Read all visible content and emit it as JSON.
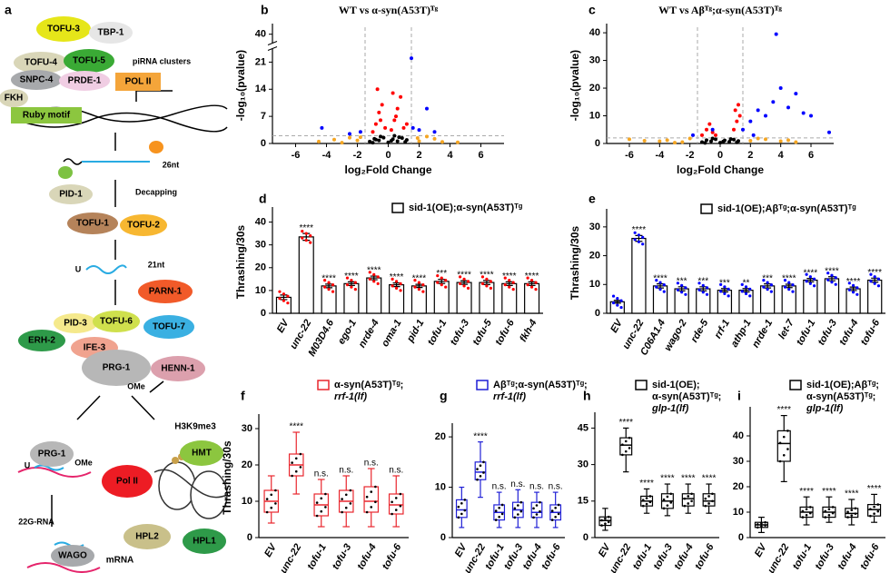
{
  "diagram": {
    "panel_label": "a",
    "nodes": [
      {
        "label": "TOFU-3"
      },
      {
        "label": "TBP-1"
      },
      {
        "label": "TOFU-4"
      },
      {
        "label": "TOFU-5"
      },
      {
        "label": "piRNA clusters"
      },
      {
        "label": "SNPC-4"
      },
      {
        "label": "PRDE-1"
      },
      {
        "label": "POL II"
      },
      {
        "label": "FKH"
      },
      {
        "label": "Ruby motif"
      },
      {
        "label": "26nt"
      },
      {
        "label": "PID-1"
      },
      {
        "label": "Decapping"
      },
      {
        "label": "TOFU-1"
      },
      {
        "label": "TOFU-2"
      },
      {
        "label": "U"
      },
      {
        "label": "21nt"
      },
      {
        "label": "PARN-1"
      },
      {
        "label": "PID-3"
      },
      {
        "label": "TOFU-6"
      },
      {
        "label": "TOFU-7"
      },
      {
        "label": "ERH-2"
      },
      {
        "label": "IFE-3"
      },
      {
        "label": "HENN-1"
      },
      {
        "label": "PRG-1"
      },
      {
        "label": "OMe"
      },
      {
        "label": "PRG-1"
      },
      {
        "label": "U"
      },
      {
        "label": "OMe"
      },
      {
        "label": "H3K9me3"
      },
      {
        "label": "HMT"
      },
      {
        "label": "Pol II"
      },
      {
        "label": "HPL2"
      },
      {
        "label": "HPL1"
      },
      {
        "label": "22G-RNA"
      },
      {
        "label": "WAGO"
      },
      {
        "label": "mRNA"
      }
    ]
  },
  "chart_data": [
    {
      "type": "scatter",
      "panel_label": "b",
      "title": "WT vs α-syn(A53T)ᵀᵍ",
      "xlabel": "log₂Fold Change",
      "ylabel": "-log₁₀(pvalue)",
      "xlim": [
        -7.5,
        7.5
      ],
      "xticks": [
        -6,
        -4,
        -2,
        0,
        2,
        4,
        6
      ],
      "ylim": [
        0,
        42
      ],
      "ybreak": [
        24,
        38
      ],
      "yticks": [
        0,
        7,
        14,
        21,
        40
      ],
      "vlines": [
        -1.5,
        1.5
      ],
      "hline": 2,
      "series": [
        {
          "color": "#f5a623",
          "x": [
            -4.5,
            -3.5,
            -2.5,
            -2,
            2,
            3,
            3.5,
            4.5,
            -3,
            2.5,
            -1.8,
            1.9
          ],
          "values": [
            0.5,
            1,
            1.5,
            0.8,
            0.6,
            1.2,
            0.4,
            0.3,
            0.2,
            1.8,
            1.6,
            1.4
          ]
        },
        {
          "color": "#000000",
          "x": [
            -1.2,
            -0.9,
            -0.6,
            -0.3,
            0,
            0.3,
            0.6,
            0.9,
            1.2,
            -1,
            -0.5,
            0.2,
            0.7,
            1.1,
            -0.8,
            0.4
          ],
          "values": [
            0.5,
            1.2,
            0.8,
            1.5,
            0.3,
            1.1,
            0.6,
            1.4,
            0.9,
            0.2,
            1.8,
            0.7,
            1.6,
            0.4,
            1,
            2
          ]
        },
        {
          "color": "#ff0000",
          "x": [
            -1,
            -0.8,
            -0.6,
            -0.4,
            -0.2,
            0.2,
            0.4,
            0.6,
            0.8,
            1,
            -0.7,
            0.5,
            0.3,
            -0.5,
            1.2
          ],
          "values": [
            3,
            5,
            8,
            10,
            4,
            3.5,
            6,
            9,
            12,
            4,
            14,
            7,
            13,
            6,
            5
          ]
        },
        {
          "color": "#0000ff",
          "x": [
            -2.5,
            -1.8,
            1.6,
            2,
            2.5,
            -4.3,
            3,
            1.5
          ],
          "values": [
            2.5,
            3,
            4,
            3.5,
            9,
            4,
            3,
            22
          ]
        }
      ]
    },
    {
      "type": "scatter",
      "panel_label": "c",
      "title": "WT vs Aβᵀᵍ;α-syn(A53T)ᵀᵍ",
      "xlabel": "log₂Fold Change",
      "ylabel": "-log₁₀(pvalue)",
      "xlim": [
        -7.5,
        7.5
      ],
      "xticks": [
        -6,
        -4,
        -2,
        0,
        2,
        4,
        6
      ],
      "ylim": [
        0,
        42
      ],
      "yticks": [
        0,
        10,
        20,
        30,
        40
      ],
      "vlines": [
        -1.5,
        1.5
      ],
      "hline": 2,
      "series": [
        {
          "color": "#f5a623",
          "x": [
            -6,
            -5,
            -4,
            -3.5,
            -2.5,
            -2,
            2,
            3,
            4,
            4.5,
            5,
            -3,
            2.5
          ],
          "values": [
            1.5,
            1,
            0.8,
            1.2,
            0.5,
            1.8,
            1,
            1.5,
            0.8,
            1.2,
            0.5,
            0.3,
            1.8
          ]
        },
        {
          "color": "#000000",
          "x": [
            -1.2,
            -0.9,
            -0.6,
            -0.3,
            0,
            0.3,
            0.6,
            0.9,
            1.2,
            -1,
            -0.5,
            0.2,
            0.7,
            1.1
          ],
          "values": [
            0.5,
            1.2,
            0.8,
            1.5,
            0.3,
            1.1,
            0.6,
            1.4,
            0.9,
            0.2,
            1.8,
            0.7,
            1.6,
            0.4
          ]
        },
        {
          "color": "#ff0000",
          "x": [
            -1.2,
            -0.9,
            -0.7,
            -0.5,
            -0.3,
            0.9,
            1.1,
            1.3,
            1,
            1.2
          ],
          "values": [
            3,
            5,
            7,
            4,
            3,
            5,
            8,
            10,
            12,
            14
          ]
        },
        {
          "color": "#0000ff",
          "x": [
            1.5,
            2,
            2.5,
            3,
            3.5,
            4,
            4.5,
            5,
            5.5,
            2.2,
            3.7,
            -1.8,
            -0.5,
            6,
            7.2
          ],
          "values": [
            5,
            8,
            12,
            10,
            15,
            20,
            13,
            18,
            11,
            3,
            39.5,
            3,
            5,
            10,
            4
          ]
        }
      ]
    },
    {
      "type": "bar",
      "panel_label": "d",
      "ylabel": "Thrashing/30s",
      "legend": "sid-1(OE);α-syn(A53T)ᵀᵍ",
      "color": "#ff0000",
      "categories": [
        "EV",
        "unc-22",
        "M03D4.6",
        "ego-1",
        "nrde-4",
        "oma-1",
        "pid-1",
        "tofu-1",
        "tofu-3",
        "tofu-5",
        "tofu-6",
        "fkh-4"
      ],
      "values": [
        7,
        33.5,
        12,
        13,
        15.5,
        12.5,
        12,
        14,
        13.5,
        13.5,
        13,
        13
      ],
      "errors": [
        1,
        1.5,
        0.8,
        0.8,
        0.8,
        0.8,
        0.7,
        0.9,
        0.8,
        0.9,
        0.8,
        0.8
      ],
      "annotations": [
        null,
        "****",
        "****",
        "****",
        "****",
        "****",
        "****",
        "***",
        "****",
        "****",
        "****",
        "****"
      ],
      "ylim": [
        0,
        45
      ],
      "yticks": [
        0,
        10,
        20,
        30,
        40
      ]
    },
    {
      "type": "bar",
      "panel_label": "e",
      "ylabel": "Thrashing/30s",
      "legend": "sid-1(OE);Aβᵀᵍ;α-syn(A53T)ᵀᵍ",
      "color": "#0000ff",
      "categories": [
        "EV",
        "unc-22",
        "C06A1.4",
        "wago-2",
        "rde-5",
        "rrf-1",
        "athp-1",
        "nrde-1",
        "let-7",
        "tofu-1",
        "tofu-3",
        "tofu-4",
        "tofu-6"
      ],
      "values": [
        4,
        26,
        9.5,
        8.5,
        8.5,
        8,
        8,
        9.5,
        9.5,
        11.5,
        12,
        8.5,
        11.5
      ],
      "errors": [
        0.5,
        1,
        0.7,
        0.7,
        0.7,
        0.6,
        0.6,
        0.7,
        0.6,
        0.6,
        0.7,
        0.6,
        0.7
      ],
      "annotations": [
        null,
        "****",
        "****",
        "***",
        "***",
        "***",
        "**",
        "***",
        "****",
        "****",
        "****",
        "****",
        "****"
      ],
      "ylim": [
        0,
        35
      ],
      "yticks": [
        0,
        10,
        20,
        30
      ]
    },
    {
      "type": "box",
      "panel_label": "f",
      "ylabel": "Thrashing/30s",
      "legend": [
        "α-syn(A53T)ᵀᵍ;",
        "rrf-1(lf)"
      ],
      "color": "#e8262d",
      "categories": [
        "EV",
        "unc-22",
        "tofu-1",
        "tofu-3",
        "tofu-4",
        "tofu-6"
      ],
      "min": [
        4,
        12,
        3,
        3,
        3,
        3
      ],
      "q1": [
        7,
        17,
        6,
        7,
        7,
        6.5
      ],
      "median": [
        10,
        20,
        9,
        10,
        10,
        9
      ],
      "q3": [
        13,
        23,
        12,
        13,
        14,
        12
      ],
      "max": [
        17,
        29,
        16,
        17,
        19,
        17
      ],
      "annotations": [
        null,
        "****",
        "n.s.",
        "n.s.",
        "n.s.",
        "n.s."
      ],
      "ylim": [
        0,
        33
      ],
      "yticks": [
        0,
        10,
        20,
        30
      ]
    },
    {
      "type": "box",
      "panel_label": "g",
      "legend": [
        "Aβᵀᵍ;α-syn(A53T)ᵀᵍ;",
        "rrf-1(lf)"
      ],
      "color": "#1f1fd6",
      "categories": [
        "EV",
        "unc-22",
        "tofu-1",
        "tofu-3",
        "tofu-4",
        "tofu-6"
      ],
      "min": [
        2,
        8,
        2,
        2,
        2,
        2
      ],
      "q1": [
        4,
        11.5,
        3.5,
        4,
        4,
        3.5
      ],
      "median": [
        5.5,
        13,
        5,
        5.5,
        5,
        5
      ],
      "q3": [
        7.5,
        15,
        6.5,
        7,
        7,
        6.5
      ],
      "max": [
        10,
        19,
        9,
        9.5,
        9,
        9
      ],
      "annotations": [
        null,
        "****",
        "n.s.",
        "n.s.",
        "n.s.",
        "n.s."
      ],
      "ylim": [
        0,
        22
      ],
      "yticks": [
        0,
        10,
        20
      ]
    },
    {
      "type": "box",
      "panel_label": "h",
      "legend": [
        "sid-1(OE);",
        "α-syn(A53T)ᵀᵍ;",
        "glp-1(lf)"
      ],
      "color": "#000000",
      "categories": [
        "EV",
        "unc-22",
        "tofu-1",
        "tofu-3",
        "tofu-4",
        "tofu-6"
      ],
      "min": [
        3,
        27,
        10,
        9,
        10,
        10
      ],
      "q1": [
        5,
        34,
        13,
        12,
        13,
        13
      ],
      "median": [
        7,
        38,
        15,
        15,
        16,
        15
      ],
      "q3": [
        8.5,
        41,
        17,
        18,
        18,
        18
      ],
      "max": [
        12,
        45,
        20,
        22,
        22,
        22
      ],
      "annotations": [
        null,
        "****",
        "****",
        "****",
        "****",
        "****"
      ],
      "ylim": [
        0,
        50
      ],
      "yticks": [
        0,
        15,
        30,
        45
      ]
    },
    {
      "type": "box",
      "panel_label": "i",
      "legend": [
        "sid-1(OE);Aβᵀᵍ;",
        "α-syn(A53T)ᵀᵍ;",
        "glp-1(lf)"
      ],
      "color": "#000000",
      "categories": [
        "EV",
        "unc-22",
        "tofu-1",
        "tofu-3",
        "tofu-4",
        "tofu-6"
      ],
      "min": [
        2,
        22,
        5,
        6,
        5,
        6
      ],
      "q1": [
        4,
        30,
        8,
        8,
        8,
        8.5
      ],
      "median": [
        5,
        37,
        10,
        10,
        9.5,
        11
      ],
      "q3": [
        6,
        42,
        12,
        12,
        11.5,
        13
      ],
      "max": [
        8,
        48,
        16,
        16,
        15,
        17
      ],
      "annotations": [
        null,
        "****",
        "****",
        "****",
        "****",
        "****"
      ],
      "ylim": [
        0,
        50
      ],
      "yticks": [
        0,
        10,
        20,
        30,
        40
      ]
    }
  ]
}
